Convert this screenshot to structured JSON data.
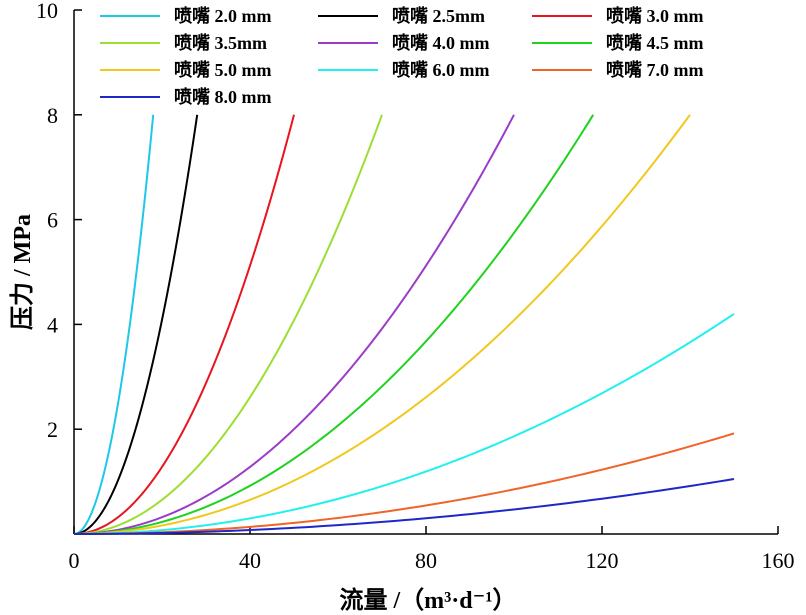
{
  "chart_data": {
    "type": "line",
    "title": "",
    "xlabel": "流量 /（m³·d⁻¹）",
    "ylabel": "压力 / MPa",
    "xlim": [
      0,
      160
    ],
    "ylim": [
      0,
      10
    ],
    "x_ticks": [
      "0",
      "40",
      "80",
      "120",
      "160"
    ],
    "y_ticks": [
      "2",
      "4",
      "6",
      "8",
      "10"
    ],
    "grid": false,
    "legend_position": "top-left",
    "series": [
      {
        "name": "喷嘴 2.0 mm",
        "color": "#1ec8e8",
        "x": [
          0,
          3,
          6,
          9,
          12,
          15,
          18
        ],
        "y": [
          0,
          0.22,
          0.9,
          2.02,
          3.59,
          5.61,
          8.0
        ]
      },
      {
        "name": "喷嘴 2.5mm",
        "color": "#000000",
        "x": [
          0,
          5,
          10,
          15,
          20,
          25,
          28
        ],
        "y": [
          0,
          0.26,
          1.02,
          2.3,
          4.08,
          6.38,
          8.0
        ]
      },
      {
        "name": "喷嘴 3.0 mm",
        "color": "#e8141e",
        "x": [
          0,
          10,
          20,
          30,
          40,
          50
        ],
        "y": [
          0,
          0.32,
          1.28,
          2.88,
          5.12,
          8.0
        ]
      },
      {
        "name": "喷嘴 3.5mm",
        "color": "#9cde32",
        "x": [
          0,
          10,
          20,
          30,
          40,
          50,
          60,
          70
        ],
        "y": [
          0,
          0.16,
          0.65,
          1.47,
          2.61,
          4.08,
          5.88,
          8.0
        ]
      },
      {
        "name": "喷嘴 4.0 mm",
        "color": "#9a3cc8",
        "x": [
          0,
          20,
          40,
          60,
          80,
          100
        ],
        "y": [
          0,
          0.32,
          1.28,
          2.88,
          5.12,
          8.0
        ]
      },
      {
        "name": "喷嘴 4.5 mm",
        "color": "#1ed21e",
        "x": [
          0,
          20,
          40,
          60,
          80,
          100,
          118
        ],
        "y": [
          0,
          0.23,
          0.92,
          2.07,
          3.68,
          5.74,
          8.0
        ]
      },
      {
        "name": "喷嘴 5.0 mm",
        "color": "#f0c81e",
        "x": [
          0,
          20,
          40,
          60,
          80,
          100,
          120,
          140
        ],
        "y": [
          0,
          0.16,
          0.65,
          1.47,
          2.61,
          4.08,
          5.88,
          8.0
        ]
      },
      {
        "name": "喷嘴 6.0 mm",
        "color": "#22f0ee",
        "x": [
          0,
          30,
          60,
          90,
          120,
          150
        ],
        "y": [
          0,
          0.17,
          0.67,
          1.51,
          2.69,
          4.2
        ]
      },
      {
        "name": "喷嘴 7.0 mm",
        "color": "#f06428",
        "x": [
          0,
          30,
          60,
          90,
          120,
          150
        ],
        "y": [
          0,
          0.08,
          0.31,
          0.69,
          1.23,
          1.92
        ]
      },
      {
        "name": "喷嘴 8.0 mm",
        "color": "#1e28c8",
        "x": [
          0,
          30,
          60,
          90,
          120,
          150
        ],
        "y": [
          0,
          0.04,
          0.17,
          0.38,
          0.67,
          1.05
        ]
      }
    ]
  }
}
